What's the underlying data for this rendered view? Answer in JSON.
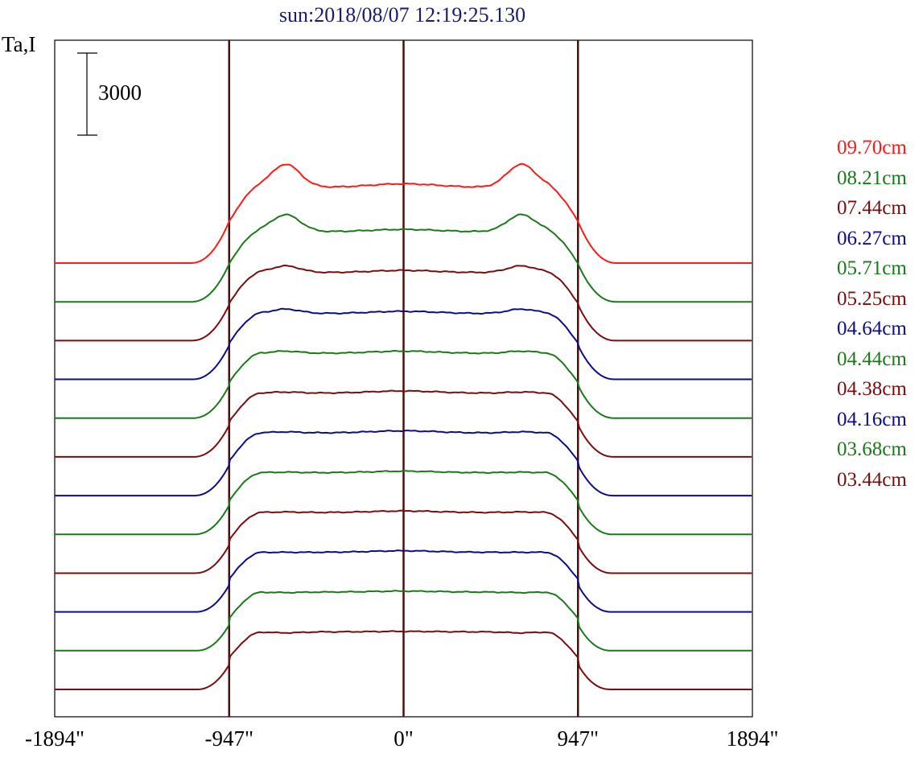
{
  "chart_data": {
    "type": "line",
    "title": "sun:2018/08/07 12:19:25.130",
    "ylabel": "Ta,I",
    "xlabel": "",
    "x_ticks": [
      "-1894\"",
      "-947\"",
      "0\"",
      "947\"",
      "1894\""
    ],
    "x_tick_values": [
      -1894,
      -947,
      0,
      947,
      1894
    ],
    "xlim": [
      -1894,
      1894
    ],
    "vertical_lines": [
      -947,
      0,
      947
    ],
    "scale_bar": {
      "label": "3000",
      "value": 3000
    },
    "grid": false,
    "legend_placement": "right",
    "layout_note": "stacked profiles, each offset vertically",
    "series_colors": [
      "#ff1a1a",
      "#1a7a1a",
      "#7a0d0d",
      "#0d0d8a"
    ],
    "series": [
      {
        "name": "09.70cm",
        "color": "#ff1a1a",
        "disk_level": 6600,
        "limb_peak": 8600,
        "center_level": 6900
      },
      {
        "name": "08.21cm",
        "color": "#1a7a1a",
        "disk_level": 6200,
        "limb_peak": 7700,
        "center_level": 6400
      },
      {
        "name": "07.44cm",
        "color": "#7a0d0d",
        "disk_level": 6100,
        "limb_peak": 6700,
        "center_level": 6300
      },
      {
        "name": "06.27cm",
        "color": "#0d0d8a",
        "disk_level": 6000,
        "limb_peak": 6400,
        "center_level": 6200
      },
      {
        "name": "05.71cm",
        "color": "#1a7a1a",
        "disk_level": 6000,
        "limb_peak": 6200,
        "center_level": 6200
      },
      {
        "name": "05.25cm",
        "color": "#7a0d0d",
        "disk_level": 6000,
        "limb_peak": 6100,
        "center_level": 6200
      },
      {
        "name": "04.64cm",
        "color": "#0d0d8a",
        "disk_level": 6000,
        "limb_peak": 6100,
        "center_level": 6200
      },
      {
        "name": "04.44cm",
        "color": "#1a7a1a",
        "disk_level": 6000,
        "limb_peak": 6050,
        "center_level": 6150
      },
      {
        "name": "04.38cm",
        "color": "#7a0d0d",
        "disk_level": 6000,
        "limb_peak": 6050,
        "center_level": 6150
      },
      {
        "name": "04.16cm",
        "color": "#0d0d8a",
        "disk_level": 6000,
        "limb_peak": 6000,
        "center_level": 6150
      },
      {
        "name": "03.68cm",
        "color": "#1a7a1a",
        "disk_level": 6000,
        "limb_peak": 5950,
        "center_level": 6100
      },
      {
        "name": "03.44cm",
        "color": "#7a0d0d",
        "disk_level": 6000,
        "limb_peak": 5900,
        "center_level": 6050
      }
    ]
  }
}
